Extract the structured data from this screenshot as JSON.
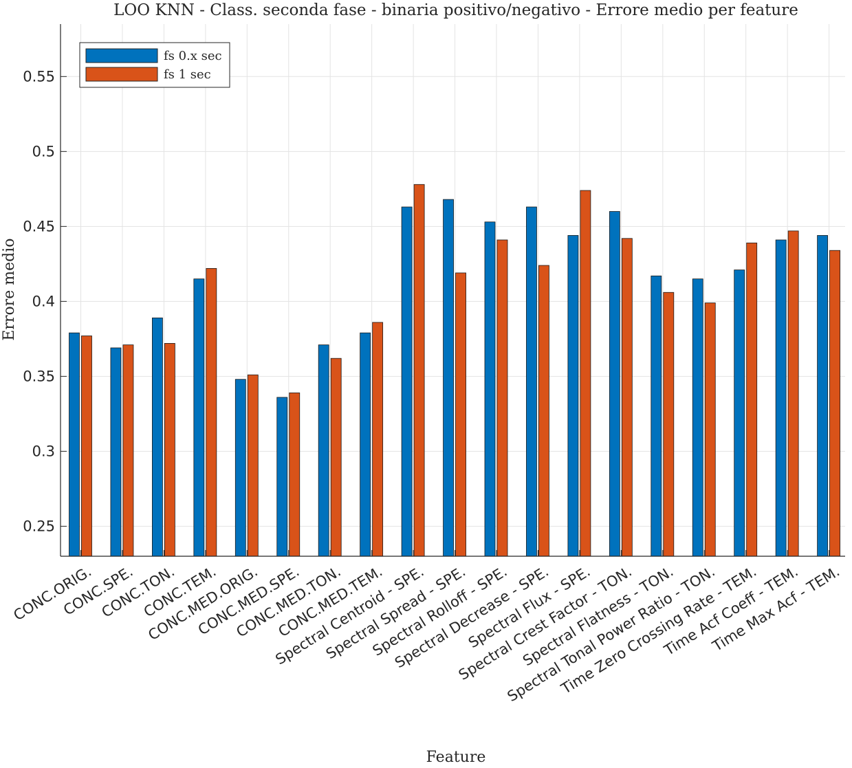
{
  "chart_data": {
    "type": "bar",
    "title": "LOO KNN - Class. seconda fase - binaria positivo/negativo - Errore medio per feature",
    "xlabel": "Feature",
    "ylabel": "Errore medio",
    "ylim": [
      0.23,
      0.585
    ],
    "yticks": [
      0.25,
      0.3,
      0.35,
      0.4,
      0.45,
      0.5,
      0.55
    ],
    "ytick_labels": [
      "0.25",
      "0.3",
      "0.35",
      "0.4",
      "0.45",
      "0.5",
      "0.55"
    ],
    "grid": true,
    "legend_position": "top-left",
    "categories": [
      "CONC.ORIG.",
      "CONC.SPE.",
      "CONC.TON.",
      "CONC.TEM.",
      "CONC.MED.ORIG.",
      "CONC.MED.SPE.",
      "CONC.MED.TON.",
      "CONC.MED.TEM.",
      "Spectral Centroid - SPE.",
      "Spectral Spread - SPE.",
      "Spectral Rolloff - SPE.",
      "Spectral Decrease - SPE.",
      "Spectral Flux - SPE.",
      "Spectral Crest Factor - TON.",
      "Spectral Flatness - TON.",
      "Spectral Tonal Power Ratio - TON.",
      "Time Zero Crossing Rate - TEM.",
      "Time Acf Coeff - TEM.",
      "Time Max Acf - TEM."
    ],
    "series": [
      {
        "name": "fs 0.x sec",
        "color": "#0072BD",
        "values": [
          0.379,
          0.369,
          0.389,
          0.415,
          0.348,
          0.336,
          0.371,
          0.379,
          0.463,
          0.468,
          0.453,
          0.463,
          0.444,
          0.46,
          0.417,
          0.415,
          0.421,
          0.441,
          0.444
        ]
      },
      {
        "name": "fs 1 sec",
        "color": "#D95319",
        "values": [
          0.377,
          0.371,
          0.372,
          0.422,
          0.351,
          0.339,
          0.362,
          0.386,
          0.478,
          0.419,
          0.441,
          0.424,
          0.474,
          0.442,
          0.406,
          0.399,
          0.439,
          0.447,
          0.434
        ]
      }
    ]
  }
}
